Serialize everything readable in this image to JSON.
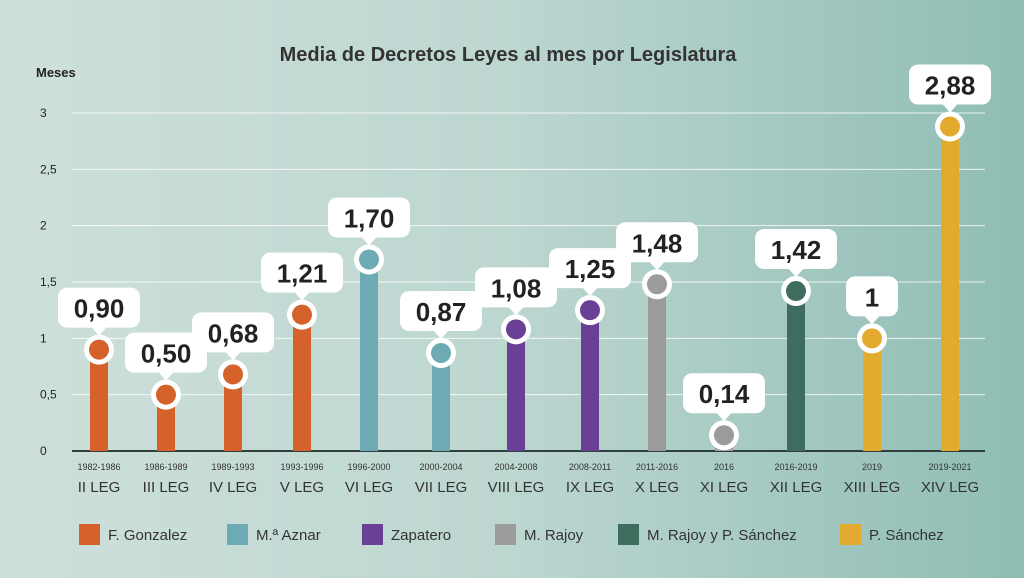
{
  "chart_data": {
    "type": "bar",
    "title": "Media de Decretos Leyes al mes por Legislatura",
    "ylabel": "Meses",
    "xlabel": "",
    "ylim": [
      0,
      3
    ],
    "yticks": [
      "0",
      "0,5",
      "1",
      "1,5",
      "2",
      "2,5",
      "3"
    ],
    "grid": true,
    "legend_position": "bottom",
    "categories": [
      "II LEG",
      "III LEG",
      "IV LEG",
      "V LEG",
      "VI LEG",
      "VII LEG",
      "VIII LEG",
      "IX LEG",
      "X LEG",
      "XI LEG",
      "XII LEG",
      "XIII LEG",
      "XIV LEG"
    ],
    "periods": [
      "1982-1986",
      "1986-1989",
      "1989-1993",
      "1993-1996",
      "1996-2000",
      "2000-2004",
      "2004-2008",
      "2008-2011",
      "2011-2016",
      "2016",
      "2016-2019",
      "2019",
      "2019-2021"
    ],
    "values": [
      0.9,
      0.5,
      0.68,
      1.21,
      1.7,
      0.87,
      1.08,
      1.25,
      1.48,
      0.14,
      1.42,
      1,
      2.88
    ],
    "data_labels": [
      "0,90",
      "0,50",
      "0,68",
      "1,21",
      "1,70",
      "0,87",
      "1,08",
      "1,25",
      "1,48",
      "0,14",
      "1,42",
      "1",
      "2,88"
    ],
    "groups": [
      0,
      0,
      0,
      0,
      1,
      1,
      2,
      2,
      3,
      3,
      4,
      5,
      5
    ],
    "legend": [
      {
        "name": "F. Gonzalez",
        "color": "#d4622a"
      },
      {
        "name": "M.ª Aznar",
        "color": "#6eaab4"
      },
      {
        "name": "Zapatero",
        "color": "#6a3f96"
      },
      {
        "name": "M. Rajoy",
        "color": "#9b9b9b"
      },
      {
        "name": "M. Rajoy y P. Sánchez",
        "color": "#3e6d5f"
      },
      {
        "name": "P. Sánchez",
        "color": "#e2aa2f"
      }
    ]
  }
}
